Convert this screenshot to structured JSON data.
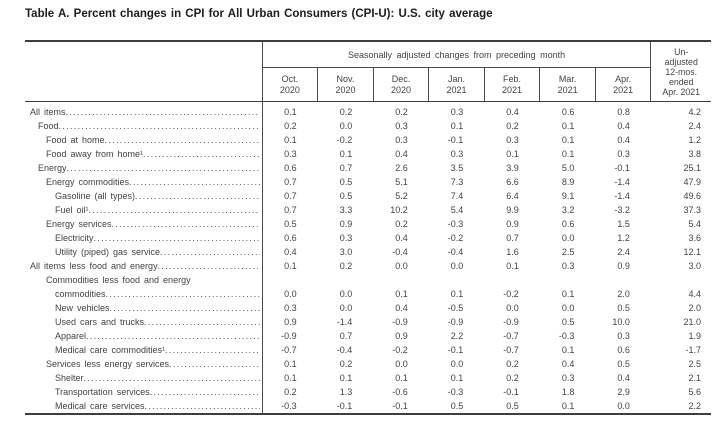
{
  "title": "Table A. Percent changes in CPI for All Urban Consumers (CPI-U): U.S. city average",
  "table": {
    "spanner": "Seasonally adjusted changes from preceding month",
    "unadjusted_header": "Un-\nadjusted\n12-mos.\nended\nApr. 2021",
    "columns": [
      "Oct.\n2020",
      "Nov.\n2020",
      "Dec.\n2020",
      "Jan.\n2021",
      "Feb.\n2021",
      "Mar.\n2021",
      "Apr.\n2021"
    ],
    "rows": [
      {
        "label": "All items",
        "indent": 0,
        "values": [
          "0.1",
          "0.2",
          "0.2",
          "0.3",
          "0.4",
          "0.6",
          "0.8",
          "4.2"
        ]
      },
      {
        "label": "Food",
        "indent": 1,
        "values": [
          "0.2",
          "0.0",
          "0.3",
          "0.1",
          "0.2",
          "0.1",
          "0.4",
          "2.4"
        ]
      },
      {
        "label": "Food at home",
        "indent": 2,
        "values": [
          "0.1",
          "-0.2",
          "0.3",
          "-0.1",
          "0.3",
          "0.1",
          "0.4",
          "1.2"
        ]
      },
      {
        "label": "Food away from home¹",
        "indent": 2,
        "values": [
          "0.3",
          "0.1",
          "0.4",
          "0.3",
          "0.1",
          "0.1",
          "0.3",
          "3.8"
        ]
      },
      {
        "label": "Energy",
        "indent": 1,
        "values": [
          "0.6",
          "0.7",
          "2.6",
          "3.5",
          "3.9",
          "5.0",
          "-0.1",
          "25.1"
        ]
      },
      {
        "label": "Energy commodities",
        "indent": 2,
        "values": [
          "0.7",
          "0.5",
          "5.1",
          "7.3",
          "6.6",
          "8.9",
          "-1.4",
          "47.9"
        ]
      },
      {
        "label": "Gasoline (all types)",
        "indent": 3,
        "values": [
          "0.7",
          "0.5",
          "5.2",
          "7.4",
          "6.4",
          "9.1",
          "-1.4",
          "49.6"
        ]
      },
      {
        "label": "Fuel oil¹",
        "indent": 3,
        "values": [
          "0.7",
          "3.3",
          "10.2",
          "5.4",
          "9.9",
          "3.2",
          "-3.2",
          "37.3"
        ]
      },
      {
        "label": "Energy services",
        "indent": 2,
        "values": [
          "0.5",
          "0.9",
          "0.2",
          "-0.3",
          "0.9",
          "0.6",
          "1.5",
          "5.4"
        ]
      },
      {
        "label": "Electricity",
        "indent": 3,
        "values": [
          "0.6",
          "0.3",
          "0.4",
          "-0.2",
          "0.7",
          "0.0",
          "1.2",
          "3.6"
        ]
      },
      {
        "label": "Utility (piped) gas service",
        "indent": 3,
        "values": [
          "0.4",
          "3.0",
          "-0.4",
          "-0.4",
          "1.6",
          "2.5",
          "2.4",
          "12.1"
        ]
      },
      {
        "label": "All items less food and energy",
        "indent": 0,
        "values": [
          "0.1",
          "0.2",
          "0.0",
          "0.0",
          "0.1",
          "0.3",
          "0.9",
          "3.0"
        ]
      },
      {
        "label": "Commodities less food and energy",
        "label2": "commodities",
        "indent": 2,
        "values": [
          "0.0",
          "0.0",
          "0.1",
          "0.1",
          "-0.2",
          "0.1",
          "2.0",
          "4.4"
        ]
      },
      {
        "label": "New vehicles",
        "indent": 3,
        "values": [
          "0.3",
          "0.0",
          "0.4",
          "-0.5",
          "0.0",
          "0.0",
          "0.5",
          "2.0"
        ]
      },
      {
        "label": "Used cars and trucks",
        "indent": 3,
        "values": [
          "0.9",
          "-1.4",
          "-0.9",
          "-0.9",
          "-0.9",
          "0.5",
          "10.0",
          "21.0"
        ]
      },
      {
        "label": "Apparel",
        "indent": 3,
        "values": [
          "-0.9",
          "0.7",
          "0.9",
          "2.2",
          "-0.7",
          "-0.3",
          "0.3",
          "1.9"
        ]
      },
      {
        "label": "Medical care commodities¹",
        "indent": 3,
        "values": [
          "-0.7",
          "-0.4",
          "-0.2",
          "-0.1",
          "-0.7",
          "0.1",
          "0.6",
          "-1.7"
        ]
      },
      {
        "label": "Services less energy services",
        "indent": 2,
        "values": [
          "0.1",
          "0.2",
          "0.0",
          "0.0",
          "0.2",
          "0.4",
          "0.5",
          "2.5"
        ]
      },
      {
        "label": "Shelter",
        "indent": 3,
        "values": [
          "0.1",
          "0.1",
          "0.1",
          "0.1",
          "0.2",
          "0.3",
          "0.4",
          "2.1"
        ]
      },
      {
        "label": "Transportation services",
        "indent": 3,
        "values": [
          "0.2",
          "1.3",
          "-0.6",
          "-0.3",
          "-0.1",
          "1.8",
          "2.9",
          "5.6"
        ]
      },
      {
        "label": "Medical care services",
        "indent": 3,
        "values": [
          "-0.3",
          "-0.1",
          "-0.1",
          "0.5",
          "0.5",
          "0.1",
          "0.0",
          "2.2"
        ]
      }
    ]
  }
}
